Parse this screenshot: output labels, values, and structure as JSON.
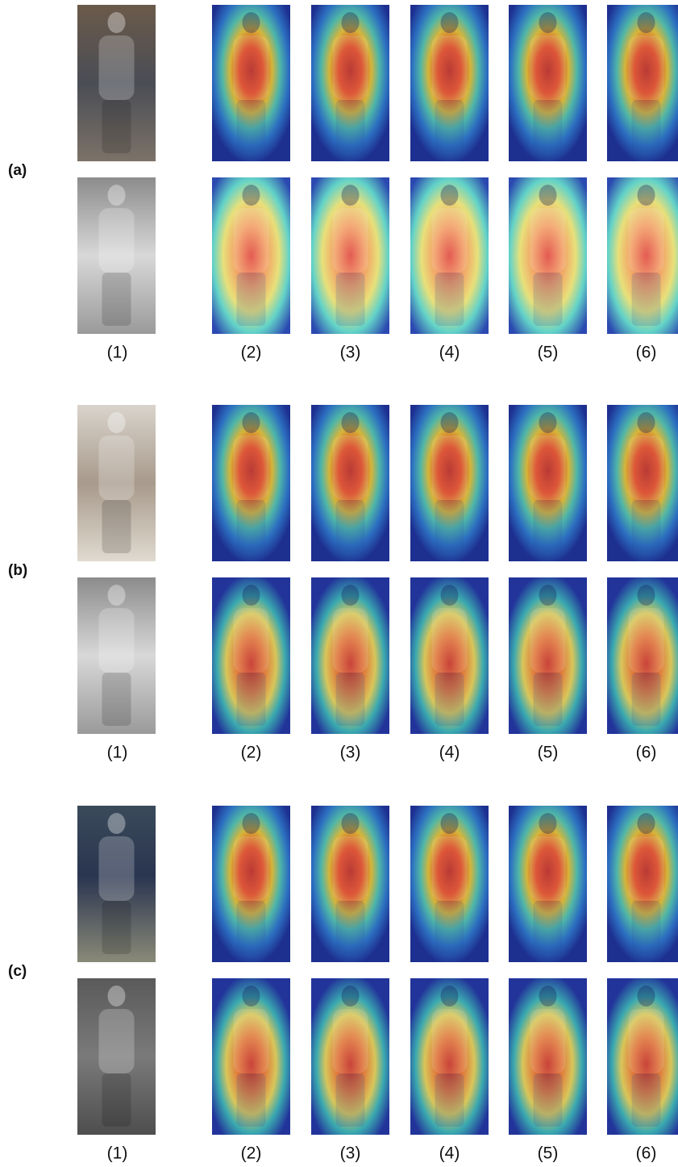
{
  "panels": [
    {
      "label": "(a)",
      "column_labels": [
        "(1)",
        "(2)",
        "(3)",
        "(4)",
        "(5)",
        "(6)"
      ]
    },
    {
      "label": "(b)",
      "column_labels": [
        "(1)",
        "(2)",
        "(3)",
        "(4)",
        "(5)",
        "(6)"
      ]
    },
    {
      "label": "(c)",
      "column_labels": [
        "(1)",
        "(2)",
        "(3)",
        "(4)",
        "(5)",
        "(6)"
      ]
    }
  ]
}
